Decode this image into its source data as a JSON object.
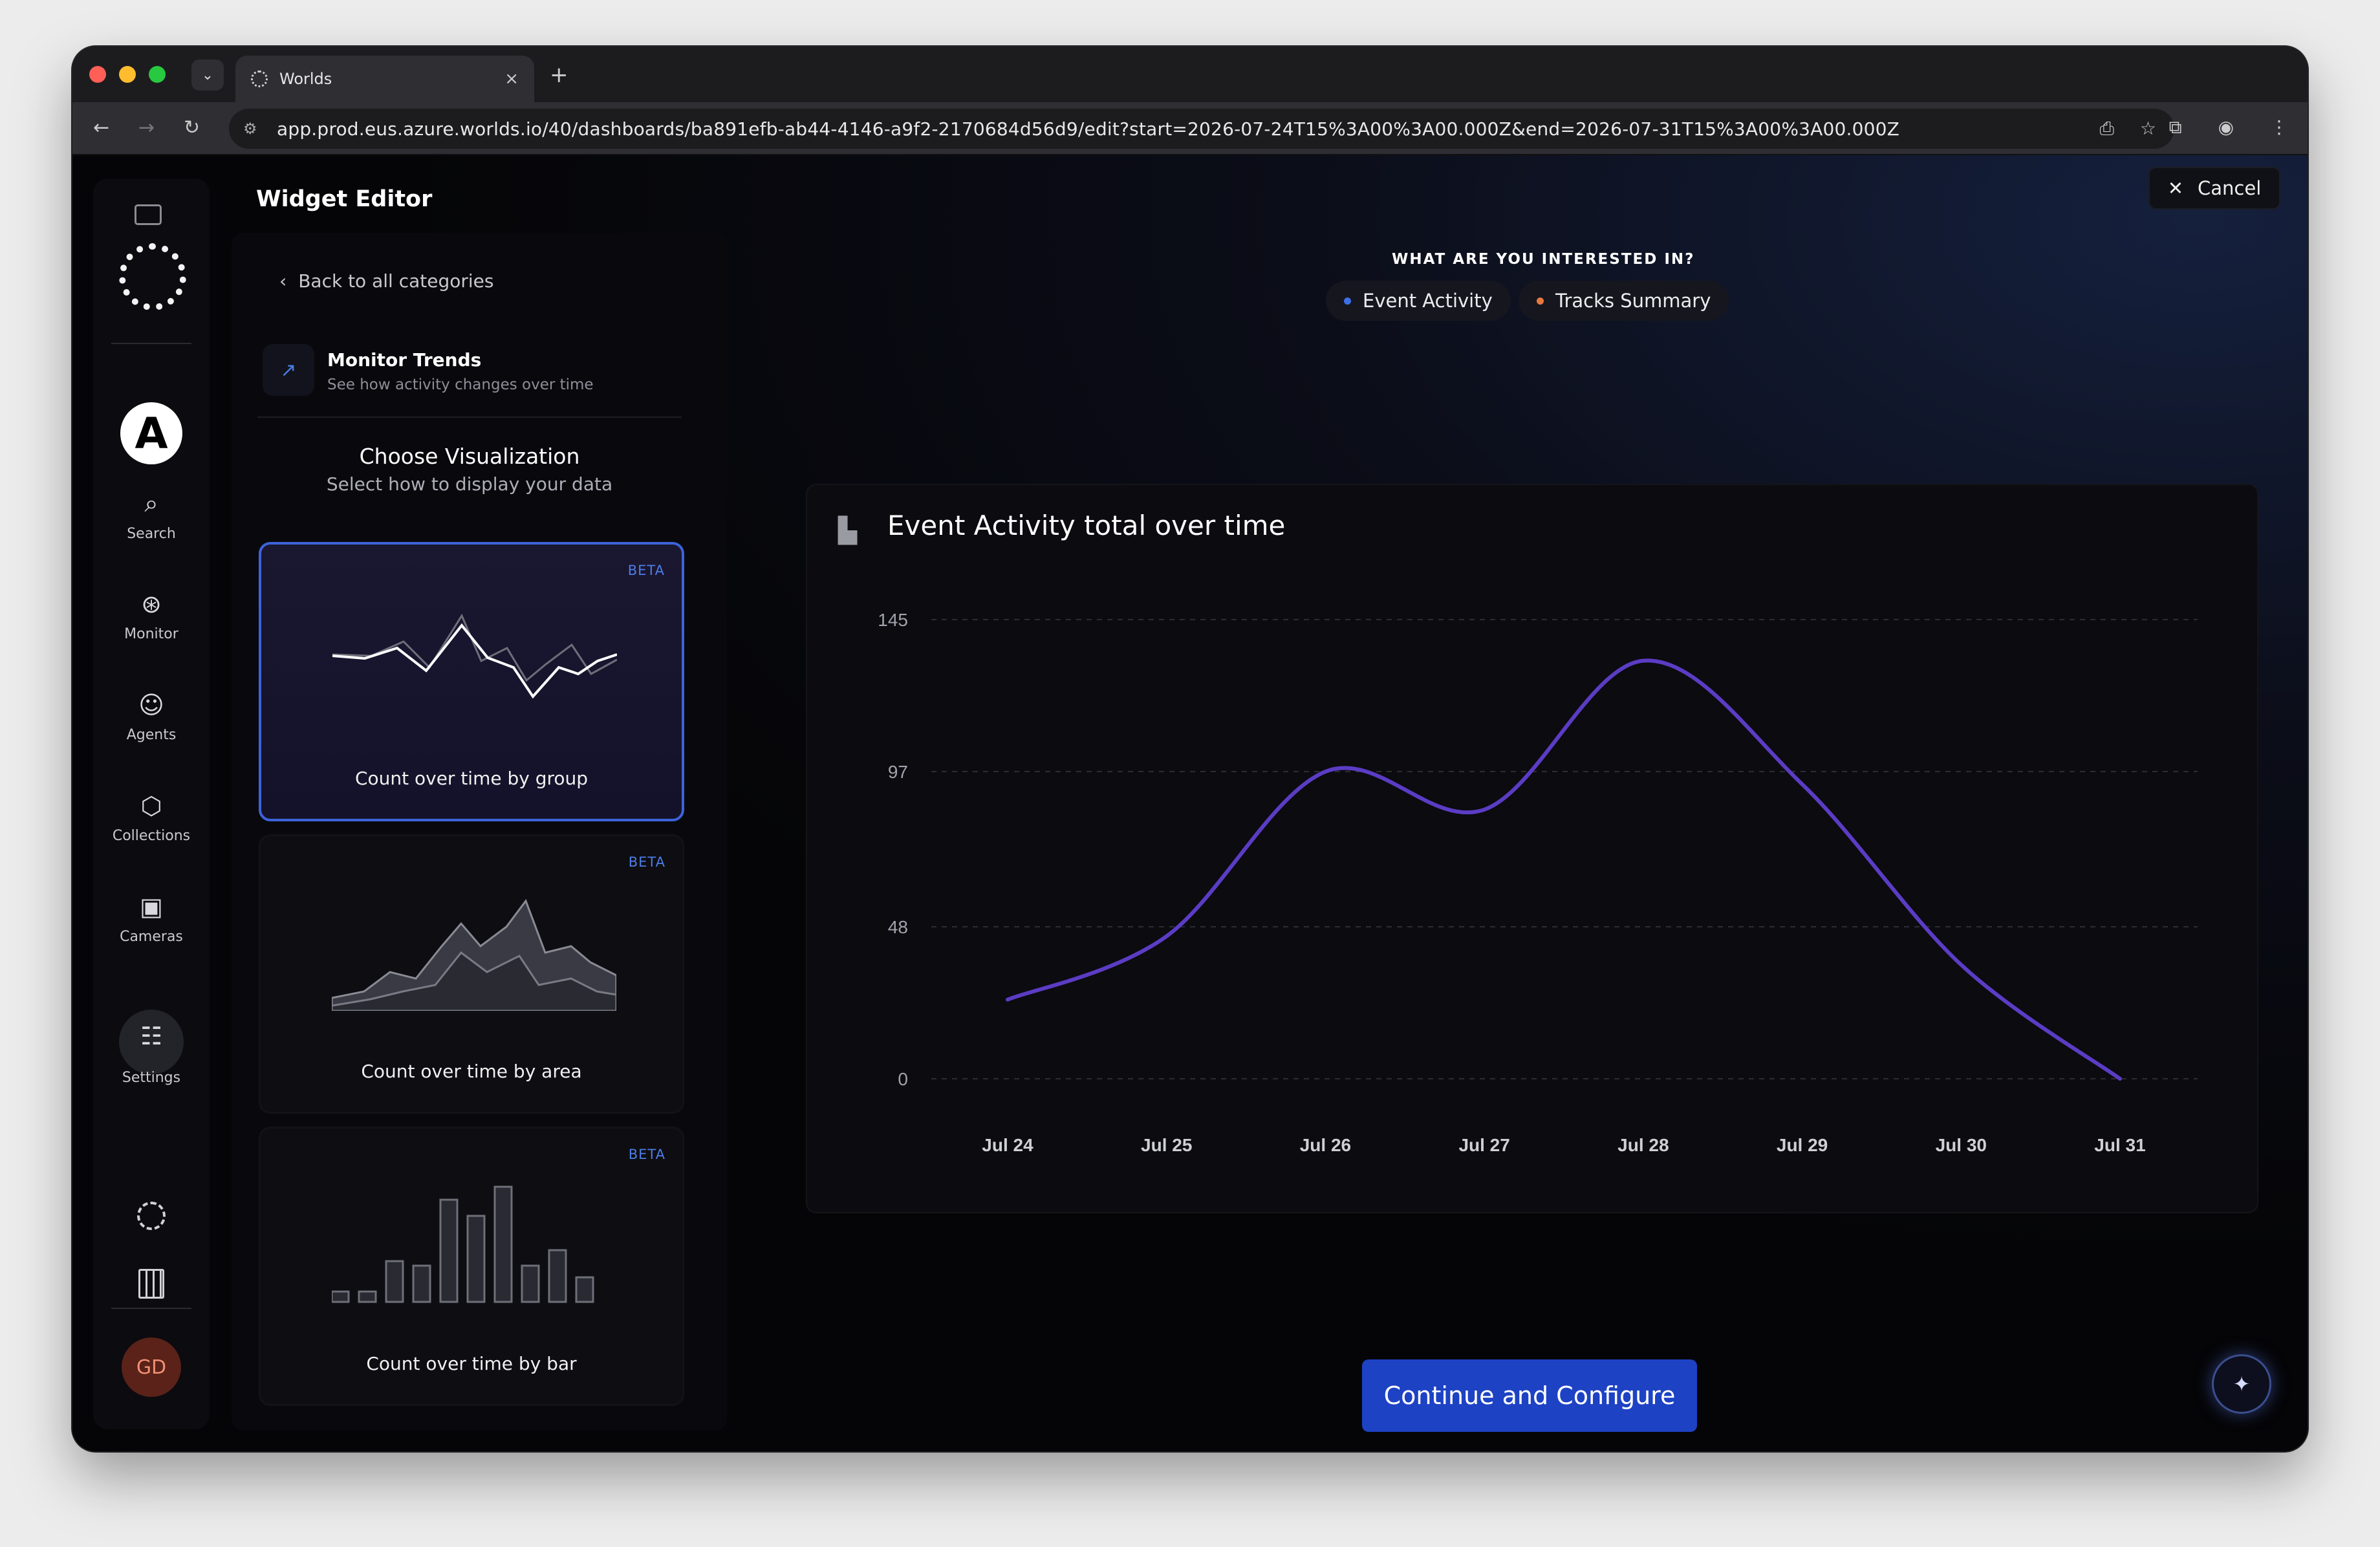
{
  "browser": {
    "tab_title": "Worlds",
    "tab_close": "×",
    "new_tab": "+",
    "tab_list": "⌄",
    "url": "app.prod.eus.azure.worlds.io/40/dashboards/ba891efb-ab44-4146-a9f2-2170684d56d9/edit?start=2026-07-24T15%3A00%3A00.000Z&end=2026-07-31T15%3A00%3A00.000Z",
    "back": "←",
    "forward": "→",
    "reload": "↻"
  },
  "sidebar": {
    "items": [
      {
        "label": "Search",
        "icon": "search-icon",
        "glyph": "⌕"
      },
      {
        "label": "Monitor",
        "icon": "monitor-icon",
        "glyph": "⊛"
      },
      {
        "label": "Agents",
        "icon": "robot-icon",
        "glyph": "☺"
      },
      {
        "label": "Collections",
        "icon": "collections-icon",
        "glyph": "⬡"
      },
      {
        "label": "Cameras",
        "icon": "camera-icon",
        "glyph": "▣"
      },
      {
        "label": "Settings",
        "icon": "sliders-icon",
        "glyph": "☷"
      }
    ],
    "avatar_letter": "A",
    "user_initials": "GD"
  },
  "header": {
    "title": "Widget Editor",
    "cancel_label": "Cancel"
  },
  "panel": {
    "back_label": "Back to all categories",
    "category_title": "Monitor Trends",
    "category_subtitle": "See how activity changes over time",
    "choose_title": "Choose Visualization",
    "choose_subtitle": "Select how to display your data",
    "cards": [
      {
        "label": "Count over time by group",
        "badge": "BETA",
        "selected": true
      },
      {
        "label": "Count over time by area",
        "badge": "BETA",
        "selected": false
      },
      {
        "label": "Count over time by bar",
        "badge": "BETA",
        "selected": false
      }
    ]
  },
  "interest": {
    "question": "WHAT ARE YOU INTERESTED IN?",
    "pills": [
      {
        "label": "Event Activity",
        "color": "#3d6fe8"
      },
      {
        "label": "Tracks Summary",
        "color": "#e8793d"
      }
    ]
  },
  "colors": {
    "accent": "#1d42c4",
    "line": "#5b3cc4",
    "selected_border": "#3c63d9"
  },
  "chart_data": {
    "type": "line",
    "title": "Event Activity total over time",
    "categories": [
      "Jul 24",
      "Jul 25",
      "Jul 26",
      "Jul 27",
      "Jul 28",
      "Jul 29",
      "Jul 30",
      "Jul 31"
    ],
    "series": [
      {
        "values": [
          25,
          45,
          97,
          85,
          132,
          93,
          36,
          0
        ]
      }
    ],
    "yticks": [
      0,
      48,
      97,
      145
    ],
    "ylim": [
      0,
      145
    ],
    "grid": true
  },
  "footer": {
    "continue_label": "Continue and Configure",
    "assistant_glyph": "✦"
  }
}
